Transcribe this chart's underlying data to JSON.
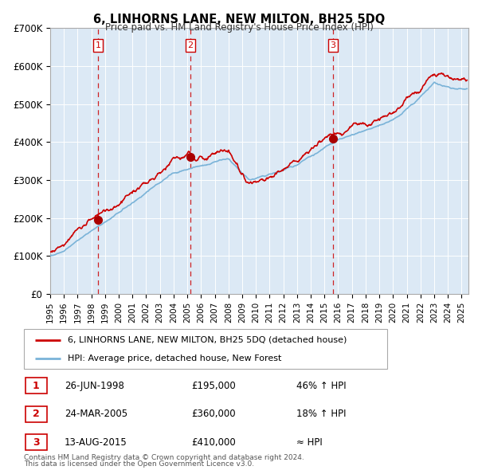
{
  "title": "6, LINHORNS LANE, NEW MILTON, BH25 5DQ",
  "subtitle": "Price paid vs. HM Land Registry's House Price Index (HPI)",
  "ylim": [
    0,
    700000
  ],
  "yticks": [
    0,
    100000,
    200000,
    300000,
    400000,
    500000,
    600000,
    700000
  ],
  "ytick_labels": [
    "£0",
    "£100K",
    "£200K",
    "£300K",
    "£400K",
    "£500K",
    "£600K",
    "£700K"
  ],
  "xlim_start": 1995.0,
  "xlim_end": 2025.5,
  "xtick_years": [
    1995,
    1996,
    1997,
    1998,
    1999,
    2000,
    2001,
    2002,
    2003,
    2004,
    2005,
    2006,
    2007,
    2008,
    2009,
    2010,
    2011,
    2012,
    2013,
    2014,
    2015,
    2016,
    2017,
    2018,
    2019,
    2020,
    2021,
    2022,
    2023,
    2024,
    2025
  ],
  "hpi_color": "#7ab3d8",
  "price_color": "#cc0000",
  "bg_color": "#dce9f5",
  "sale_points": [
    {
      "year": 1998.48,
      "price": 195000,
      "label": "1"
    },
    {
      "year": 2005.23,
      "price": 360000,
      "label": "2"
    },
    {
      "year": 2015.62,
      "price": 410000,
      "label": "3"
    }
  ],
  "vline_years": [
    1998.48,
    2005.23,
    2015.62
  ],
  "legend_line1": "6, LINHORNS LANE, NEW MILTON, BH25 5DQ (detached house)",
  "legend_line2": "HPI: Average price, detached house, New Forest",
  "table_rows": [
    {
      "num": "1",
      "date": "26-JUN-1998",
      "price": "£195,000",
      "change": "46% ↑ HPI"
    },
    {
      "num": "2",
      "date": "24-MAR-2005",
      "price": "£360,000",
      "change": "18% ↑ HPI"
    },
    {
      "num": "3",
      "date": "13-AUG-2015",
      "price": "£410,000",
      "change": "≈ HPI"
    }
  ],
  "footnote1": "Contains HM Land Registry data © Crown copyright and database right 2024.",
  "footnote2": "This data is licensed under the Open Government Licence v3.0."
}
